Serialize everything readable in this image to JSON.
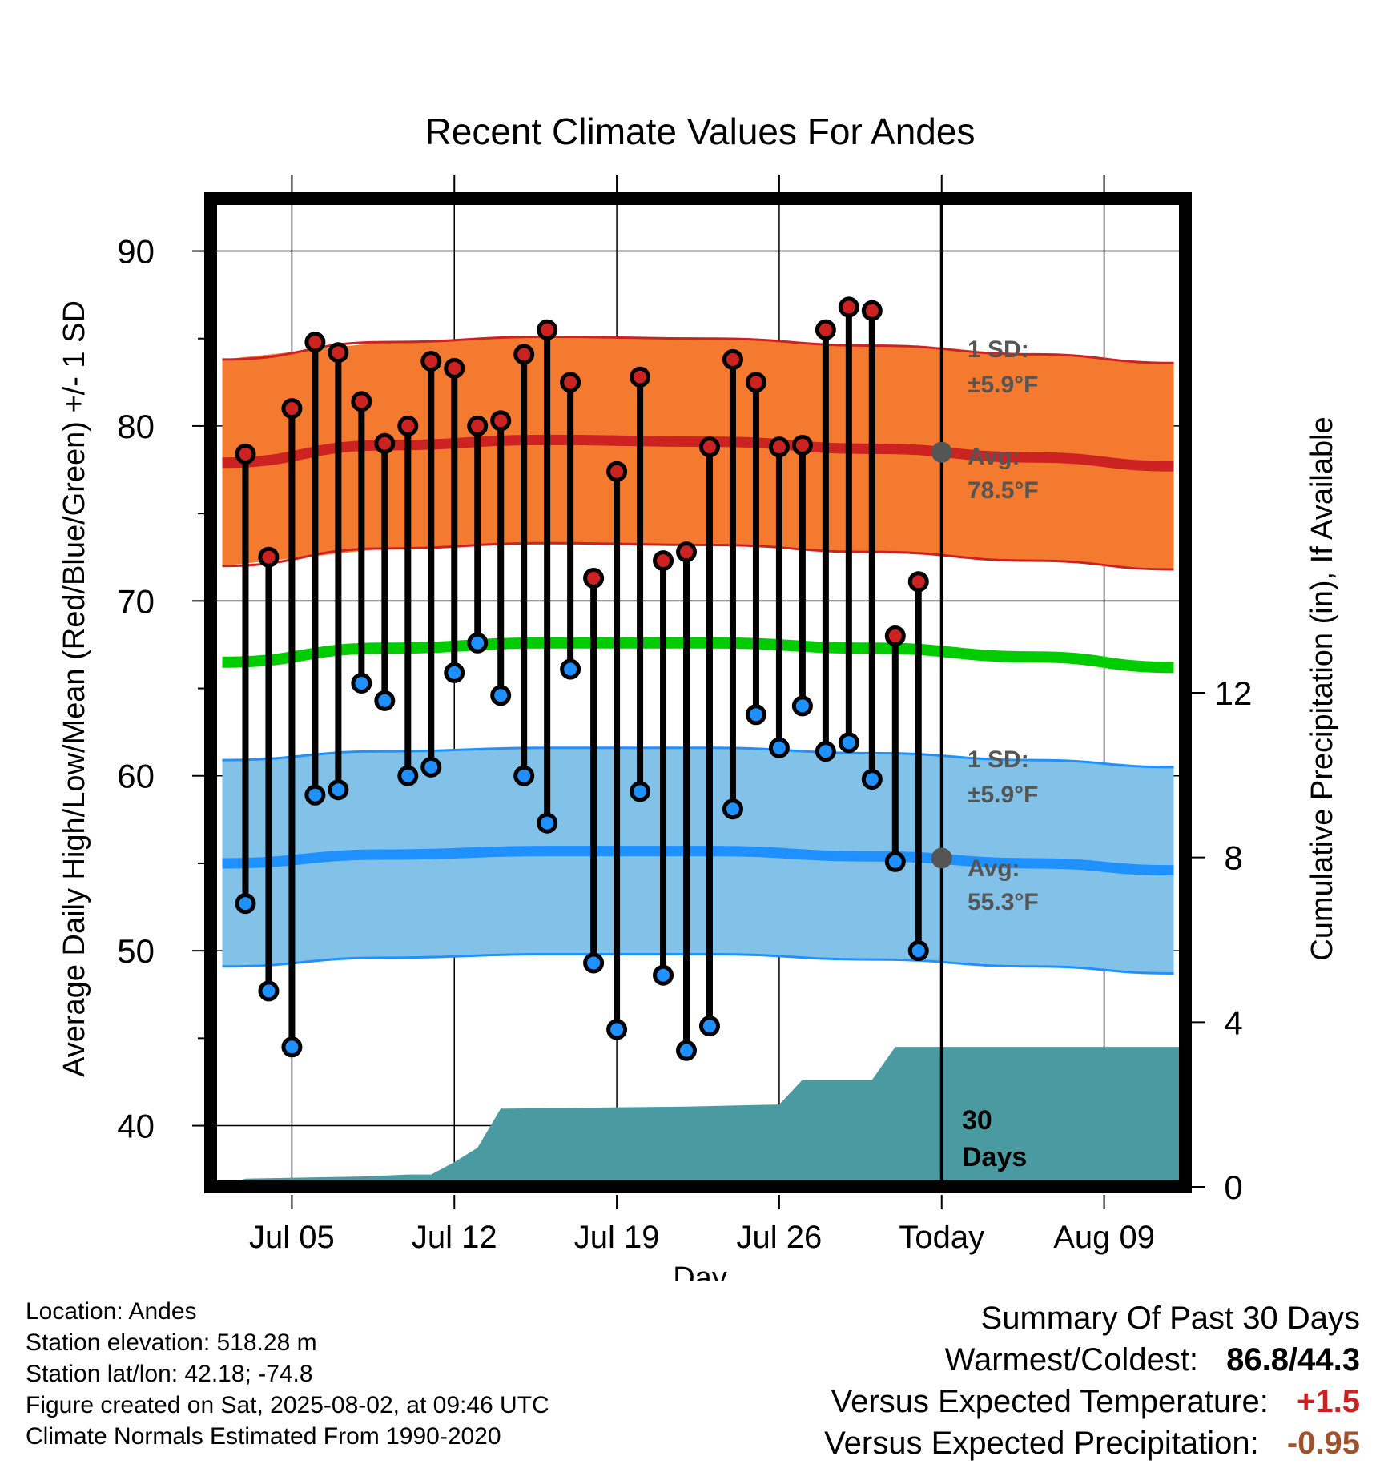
{
  "chart_data": {
    "type": "line",
    "title": "Recent Climate Values For Andes",
    "xlabel": "Day",
    "ylabel": "Average Daily High/Low/Mean (Red/Blue/Green) +/- 1 SD",
    "y2label": "Cumulative Precipitation (in), If Available",
    "x_range": [
      "2025-07-02",
      "2025-08-12"
    ],
    "x_ticks": [
      {
        "date": "2025-07-05",
        "label": "Jul 05"
      },
      {
        "date": "2025-07-12",
        "label": "Jul 12"
      },
      {
        "date": "2025-07-19",
        "label": "Jul 19"
      },
      {
        "date": "2025-07-26",
        "label": "Jul 26"
      },
      {
        "date": "2025-08-02",
        "label": "Today"
      },
      {
        "date": "2025-08-09",
        "label": "Aug 09"
      }
    ],
    "y_ticks": [
      "40",
      "50",
      "60",
      "70",
      "80",
      "90"
    ],
    "ylim": [
      36.5,
      93
    ],
    "y2_ticks": [
      "0",
      "4",
      "8",
      "12"
    ],
    "y2lim": [
      0,
      24
    ],
    "grid": true,
    "colors": {
      "high": "#cc2222",
      "low": "#1e90ff",
      "mean": "#00cc00",
      "high_band": "#f47a30",
      "low_band": "#82c2e8",
      "precip": "#4a9aa2",
      "marker": "#555555"
    },
    "series": [
      {
        "name": "High",
        "dates": [
          "2025-07-03",
          "2025-07-04",
          "2025-07-05",
          "2025-07-06",
          "2025-07-07",
          "2025-07-08",
          "2025-07-09",
          "2025-07-10",
          "2025-07-11",
          "2025-07-12",
          "2025-07-13",
          "2025-07-14",
          "2025-07-15",
          "2025-07-16",
          "2025-07-17",
          "2025-07-18",
          "2025-07-19",
          "2025-07-20",
          "2025-07-21",
          "2025-07-22",
          "2025-07-23",
          "2025-07-24",
          "2025-07-25",
          "2025-07-26",
          "2025-07-27",
          "2025-07-28",
          "2025-07-29",
          "2025-07-30",
          "2025-07-31",
          "2025-08-01"
        ],
        "values": [
          78.4,
          72.5,
          81.0,
          84.8,
          84.2,
          81.4,
          79.0,
          80.0,
          83.7,
          83.3,
          80.0,
          80.3,
          84.1,
          85.5,
          82.5,
          71.3,
          77.4,
          82.8,
          72.3,
          72.8,
          78.8,
          83.8,
          82.5,
          78.8,
          78.9,
          85.5,
          86.8,
          86.6,
          68.0,
          71.1
        ]
      },
      {
        "name": "Low",
        "dates": [
          "2025-07-03",
          "2025-07-04",
          "2025-07-05",
          "2025-07-06",
          "2025-07-07",
          "2025-07-08",
          "2025-07-09",
          "2025-07-10",
          "2025-07-11",
          "2025-07-12",
          "2025-07-13",
          "2025-07-14",
          "2025-07-15",
          "2025-07-16",
          "2025-07-17",
          "2025-07-18",
          "2025-07-19",
          "2025-07-20",
          "2025-07-21",
          "2025-07-22",
          "2025-07-23",
          "2025-07-24",
          "2025-07-25",
          "2025-07-26",
          "2025-07-27",
          "2025-07-28",
          "2025-07-29",
          "2025-07-30",
          "2025-07-31",
          "2025-08-01"
        ],
        "values": [
          52.7,
          47.7,
          44.5,
          58.9,
          59.2,
          65.3,
          64.3,
          60.0,
          60.5,
          65.9,
          67.6,
          64.6,
          60.0,
          57.3,
          66.1,
          49.3,
          45.5,
          59.1,
          48.6,
          44.3,
          45.7,
          58.1,
          63.5,
          61.6,
          64.0,
          61.4,
          61.9,
          59.8,
          55.1,
          50.0
        ]
      },
      {
        "name": "Normal High",
        "dates": [
          "2025-07-02",
          "2025-07-09",
          "2025-07-16",
          "2025-07-23",
          "2025-07-30",
          "2025-08-06",
          "2025-08-12"
        ],
        "values": [
          77.9,
          78.9,
          79.2,
          79.1,
          78.7,
          78.2,
          77.7
        ],
        "sd": 5.9
      },
      {
        "name": "Normal Mean",
        "dates": [
          "2025-07-02",
          "2025-07-09",
          "2025-07-16",
          "2025-07-23",
          "2025-07-30",
          "2025-08-06",
          "2025-08-12"
        ],
        "values": [
          66.5,
          67.3,
          67.6,
          67.6,
          67.3,
          66.8,
          66.2
        ]
      },
      {
        "name": "Normal Low",
        "dates": [
          "2025-07-02",
          "2025-07-09",
          "2025-07-16",
          "2025-07-23",
          "2025-07-30",
          "2025-08-06",
          "2025-08-12"
        ],
        "values": [
          55.0,
          55.5,
          55.7,
          55.7,
          55.4,
          55.0,
          54.6
        ],
        "sd": 5.9
      },
      {
        "name": "Cumulative Precipitation",
        "dates": [
          "2025-07-02",
          "2025-07-03",
          "2025-07-08",
          "2025-07-10",
          "2025-07-11",
          "2025-07-12",
          "2025-07-13",
          "2025-07-14",
          "2025-07-22",
          "2025-07-26",
          "2025-07-27",
          "2025-07-30",
          "2025-07-31",
          "2025-08-12"
        ],
        "values": [
          0.0,
          0.2,
          0.25,
          0.3,
          0.3,
          0.6,
          0.95,
          1.9,
          1.95,
          2.0,
          2.6,
          2.6,
          3.4,
          3.4
        ]
      }
    ],
    "today": {
      "date": "2025-08-02",
      "avg_high": 78.5,
      "avg_low": 55.3,
      "high_sd_label": "1 SD:",
      "high_sd_value": "±5.9°F",
      "high_avg_label": "Avg:",
      "high_avg_value": "78.5°F",
      "low_sd_label": "1 SD:",
      "low_sd_value": "±5.9°F",
      "low_avg_label": "Avg:",
      "low_avg_value": "55.3°F"
    },
    "period_label_1": "30",
    "period_label_2": "Days"
  },
  "footer": {
    "location": "Location: Andes",
    "elevation": "Station elevation: 518.28 m",
    "latlon": "Station lat/lon: 42.18; -74.8",
    "created": "Figure created on Sat, 2025-08-02, at 09:46 UTC",
    "normals": "Climate Normals Estimated From 1990-2020"
  },
  "summary": {
    "heading": "Summary Of Past 30 Days",
    "warm_cold_label": "Warmest/Coldest:",
    "warm_cold_value": "86.8/44.3",
    "temp_label": "Versus Expected Temperature:",
    "temp_value": "+1.5",
    "temp_color": "#cc2222",
    "precip_label": "Versus Expected Precipitation:",
    "precip_value": "-0.95",
    "precip_color": "#a0522d"
  }
}
